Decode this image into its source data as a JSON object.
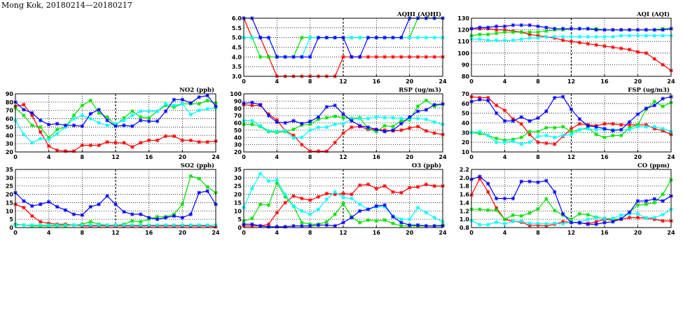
{
  "title": "Mong Kok, 20180214—20180217",
  "series_colors": {
    "red": "#ff0000",
    "green": "#00e000",
    "cyan": "#00ffff",
    "blue": "#0000ff"
  },
  "chart_data": [
    {
      "id": "aqhi",
      "type": "line",
      "title": "AQHI (AQHI)",
      "xlabel": "",
      "ylabel": "",
      "xlim": [
        0,
        24
      ],
      "xticks": [
        0,
        4,
        8,
        12,
        16,
        20,
        24
      ],
      "ylim": [
        3,
        6
      ],
      "yticks": [
        "3.0",
        "3.5",
        "4.0",
        "4.5",
        "5.0",
        "5.5",
        "6.0"
      ],
      "grid": true,
      "series": [
        {
          "name": "red",
          "values": [
            6,
            5,
            5,
            4,
            3,
            3,
            3,
            3,
            3,
            3,
            3,
            3,
            4,
            4,
            4,
            4,
            4,
            4,
            4,
            4,
            4,
            4,
            4,
            4,
            4
          ]
        },
        {
          "name": "green",
          "values": [
            5,
            5,
            4,
            4,
            4,
            4,
            4,
            5,
            5,
            5,
            5,
            5,
            5,
            5,
            5,
            5,
            5,
            5,
            5,
            5,
            5,
            6,
            6,
            6,
            6
          ]
        },
        {
          "name": "cyan",
          "values": [
            5,
            5,
            5,
            5,
            4,
            4,
            4,
            4,
            5,
            5,
            5,
            5,
            5,
            5,
            5,
            5,
            5,
            5,
            5,
            5,
            5,
            5,
            5,
            5,
            5
          ]
        },
        {
          "name": "blue",
          "values": [
            6,
            6,
            5,
            5,
            4,
            4,
            4,
            4,
            4,
            5,
            5,
            5,
            5,
            4,
            4,
            5,
            5,
            5,
            5,
            5,
            6,
            6,
            6,
            6,
            6
          ]
        }
      ]
    },
    {
      "id": "aqi",
      "type": "line",
      "title": "AQI (AQI)",
      "xlabel": "",
      "ylabel": "",
      "xlim": [
        0,
        24
      ],
      "xticks": [
        0,
        4,
        8,
        12,
        16,
        20,
        24
      ],
      "ylim": [
        80,
        130
      ],
      "yticks": [
        "80",
        "90",
        "100",
        "110",
        "120",
        "130"
      ],
      "grid": true,
      "series": [
        {
          "name": "red",
          "values": [
            121,
            121,
            121,
            120,
            120,
            119,
            118,
            116,
            115,
            114,
            113,
            111,
            110,
            109,
            108,
            107,
            106,
            105,
            104,
            103,
            101,
            100,
            95,
            90,
            85
          ]
        },
        {
          "name": "green",
          "values": [
            115,
            116,
            116,
            117,
            118,
            118,
            118,
            118,
            118,
            119,
            120,
            120,
            121,
            121,
            121,
            121,
            120,
            120,
            120,
            120,
            120,
            120,
            120,
            121,
            121
          ]
        },
        {
          "name": "cyan",
          "values": [
            112,
            112,
            111,
            111,
            111,
            111,
            112,
            113,
            113,
            114,
            114,
            114,
            114,
            114,
            114,
            114,
            114,
            114,
            115,
            115,
            115,
            115,
            115,
            115,
            115
          ]
        },
        {
          "name": "blue",
          "values": [
            121,
            122,
            122,
            123,
            123,
            124,
            124,
            124,
            123,
            122,
            121,
            121,
            121,
            121,
            121,
            120,
            120,
            120,
            120,
            120,
            120,
            120,
            120,
            120,
            121
          ]
        }
      ]
    },
    {
      "id": "no2",
      "type": "line",
      "title": "NO2 (ppb)",
      "xlabel": "",
      "ylabel": "",
      "xlim": [
        0,
        24
      ],
      "xticks": [
        0,
        4,
        8,
        12,
        16,
        20,
        24
      ],
      "ylim": [
        20,
        90
      ],
      "yticks": [
        "20",
        "30",
        "40",
        "50",
        "60",
        "70",
        "80",
        "90"
      ],
      "grid": true,
      "series": [
        {
          "name": "red",
          "values": [
            75,
            77,
            64,
            44,
            27,
            22,
            21,
            21,
            28,
            28,
            28,
            32,
            31,
            31,
            26,
            31,
            34,
            34,
            39,
            39,
            34,
            34,
            32,
            32,
            33
          ]
        },
        {
          "name": "green",
          "values": [
            73,
            64,
            52,
            50,
            37,
            47,
            50,
            64,
            76,
            82,
            67,
            62,
            52,
            61,
            69,
            62,
            61,
            69,
            76,
            74,
            78,
            78,
            78,
            82,
            79
          ]
        },
        {
          "name": "cyan",
          "values": [
            58,
            41,
            31,
            36,
            35,
            42,
            50,
            60,
            64,
            60,
            55,
            52,
            54,
            58,
            64,
            69,
            69,
            69,
            78,
            76,
            78,
            65,
            70,
            72,
            73
          ]
        },
        {
          "name": "blue",
          "values": [
            80,
            71,
            67,
            58,
            53,
            54,
            52,
            52,
            51,
            66,
            71,
            58,
            51,
            52,
            51,
            58,
            57,
            57,
            69,
            83,
            83,
            79,
            86,
            88,
            75
          ]
        }
      ]
    },
    {
      "id": "rsp",
      "type": "line",
      "title": "RSP (ug/m3)",
      "xlabel": "",
      "ylabel": "",
      "xlim": [
        0,
        24
      ],
      "xticks": [
        0,
        4,
        8,
        12,
        16,
        20,
        24
      ],
      "ylim": [
        20,
        100
      ],
      "yticks": [
        "20",
        "30",
        "40",
        "50",
        "60",
        "70",
        "80",
        "90",
        "100"
      ],
      "grid": true,
      "series": [
        {
          "name": "red",
          "values": [
            85,
            84,
            84,
            72,
            64,
            49,
            43,
            30,
            21,
            21,
            21,
            33,
            46,
            54,
            55,
            51,
            51,
            50,
            49,
            50,
            53,
            55,
            49,
            46,
            44
          ]
        },
        {
          "name": "green",
          "values": [
            58,
            58,
            55,
            48,
            47,
            48,
            51,
            57,
            58,
            65,
            67,
            69,
            67,
            66,
            67,
            52,
            48,
            56,
            55,
            63,
            64,
            83,
            91,
            83,
            86
          ]
        },
        {
          "name": "cyan",
          "values": [
            63,
            63,
            56,
            49,
            48,
            49,
            39,
            40,
            50,
            54,
            54,
            58,
            59,
            65,
            66,
            66,
            68,
            67,
            67,
            66,
            66,
            66,
            65,
            61,
            58
          ]
        },
        {
          "name": "blue",
          "values": [
            87,
            88,
            85,
            70,
            61,
            60,
            63,
            59,
            62,
            68,
            82,
            84,
            72,
            63,
            56,
            54,
            51,
            48,
            50,
            59,
            68,
            76,
            78,
            85,
            86
          ]
        }
      ]
    },
    {
      "id": "fsp",
      "type": "line",
      "title": "FSP (ug/m3)",
      "xlabel": "",
      "ylabel": "",
      "xlim": [
        0,
        24
      ],
      "xticks": [
        0,
        4,
        8,
        12,
        16,
        20,
        24
      ],
      "ylim": [
        10,
        70
      ],
      "yticks": [
        "10",
        "20",
        "30",
        "40",
        "50",
        "60",
        "70"
      ],
      "grid": true,
      "series": [
        {
          "name": "red",
          "values": [
            67,
            66,
            66,
            58,
            53,
            44,
            39,
            28,
            20,
            19,
            18,
            26,
            34,
            39,
            38,
            37,
            39,
            39,
            38,
            38,
            38,
            38,
            34,
            32,
            28
          ]
        },
        {
          "name": "green",
          "values": [
            30,
            29,
            27,
            24,
            22,
            23,
            25,
            31,
            31,
            35,
            35,
            36,
            31,
            33,
            35,
            28,
            25,
            27,
            27,
            35,
            38,
            54,
            62,
            57,
            61
          ]
        },
        {
          "name": "cyan",
          "values": [
            30,
            31,
            27,
            20,
            20,
            21,
            18,
            20,
            26,
            27,
            25,
            27,
            28,
            33,
            34,
            33,
            33,
            33,
            33,
            33,
            36,
            36,
            36,
            34,
            31
          ]
        },
        {
          "name": "blue",
          "values": [
            62,
            64,
            63,
            50,
            42,
            42,
            46,
            42,
            45,
            52,
            66,
            67,
            54,
            44,
            37,
            36,
            34,
            32,
            33,
            41,
            49,
            55,
            58,
            65,
            67
          ]
        }
      ]
    },
    {
      "id": "so2",
      "type": "line",
      "title": "SO2 (ppb)",
      "xlabel": "",
      "ylabel": "",
      "xlim": [
        0,
        24
      ],
      "xticks": [
        0,
        4,
        8,
        12,
        16,
        20,
        24
      ],
      "ylim": [
        0,
        35
      ],
      "yticks": [
        "0",
        "5",
        "10",
        "15",
        "20",
        "25",
        "30",
        "35"
      ],
      "grid": true,
      "series": [
        {
          "name": "red",
          "values": [
            14,
            12,
            7,
            3.5,
            2.5,
            2,
            2,
            1.5,
            1,
            1,
            1,
            1,
            1,
            1,
            1,
            1,
            1,
            1,
            1,
            1,
            1,
            1,
            1,
            1,
            0.5
          ]
        },
        {
          "name": "green",
          "values": [
            2,
            1.5,
            1,
            1,
            1,
            1,
            1,
            1.5,
            2,
            3.5,
            2,
            1.5,
            1.5,
            2,
            4,
            3.5,
            5,
            6.5,
            6.5,
            8,
            14,
            31,
            29.5,
            24.5,
            21
          ]
        },
        {
          "name": "cyan",
          "values": [
            1.5,
            1.5,
            1.5,
            1.5,
            1.5,
            1.5,
            1.5,
            1.5,
            1.5,
            1.5,
            1.5,
            1.5,
            1.5,
            1.5,
            1.5,
            1.5,
            1.5,
            1.5,
            1.5,
            1.5,
            1.5,
            1.5,
            1.5,
            1.5,
            1.5
          ]
        },
        {
          "name": "blue",
          "values": [
            21,
            16,
            13,
            14,
            15.5,
            12.5,
            10.5,
            8,
            7.5,
            12.5,
            14,
            19,
            14,
            9.5,
            8,
            8,
            6,
            5,
            6,
            7,
            6,
            8,
            21,
            22,
            14
          ]
        }
      ]
    },
    {
      "id": "o3",
      "type": "line",
      "title": "O3 (ppb)",
      "xlabel": "",
      "ylabel": "",
      "xlim": [
        0,
        24
      ],
      "xticks": [
        0,
        4,
        8,
        12,
        16,
        20,
        24
      ],
      "ylim": [
        0,
        35
      ],
      "yticks": [
        "0",
        "5",
        "10",
        "15",
        "20",
        "25",
        "30",
        "35"
      ],
      "grid": true,
      "series": [
        {
          "name": "red",
          "values": [
            1,
            1,
            1,
            2,
            9,
            15,
            19,
            17.5,
            16.5,
            18.5,
            20.5,
            20,
            20.5,
            20,
            25.5,
            26,
            23.5,
            25,
            21.5,
            21,
            24,
            24.5,
            26,
            25,
            25
          ]
        },
        {
          "name": "green",
          "values": [
            4,
            5.5,
            14,
            13.5,
            27,
            18.5,
            13,
            3,
            2,
            2,
            3.5,
            8,
            14.5,
            6.5,
            3,
            4.5,
            4,
            4.5,
            2.5,
            1,
            1,
            1,
            1,
            1,
            1.5
          ]
        },
        {
          "name": "cyan",
          "values": [
            12,
            23.5,
            32.5,
            28,
            28.5,
            20,
            13,
            10,
            8,
            11,
            17,
            21.5,
            18,
            17.5,
            14,
            11,
            12.5,
            12.5,
            7,
            5,
            5,
            12,
            9,
            6,
            3.5
          ]
        },
        {
          "name": "blue",
          "values": [
            2,
            2,
            1,
            0.5,
            0.5,
            0.5,
            1,
            1,
            1,
            1.5,
            1.5,
            1,
            3,
            6,
            10,
            11,
            13,
            13.5,
            6.5,
            3,
            1.5,
            1.5,
            1,
            1,
            1
          ]
        }
      ]
    },
    {
      "id": "co",
      "type": "line",
      "title": "CO (ppm)",
      "xlabel": "",
      "ylabel": "",
      "xlim": [
        0,
        24
      ],
      "xticks": [
        0,
        4,
        8,
        12,
        16,
        20,
        24
      ],
      "ylim": [
        0.8,
        2.2
      ],
      "yticks": [
        "0.8",
        "1.0",
        "1.2",
        "1.4",
        "1.6",
        "1.8",
        "2.0",
        "2.2"
      ],
      "grid": true,
      "series": [
        {
          "name": "red",
          "values": [
            1.58,
            1.98,
            1.66,
            1.27,
            1.0,
            0.95,
            0.93,
            0.85,
            0.86,
            0.84,
            0.88,
            0.94,
            0.93,
            0.91,
            0.9,
            0.94,
            1.0,
            0.98,
            1.0,
            1.04,
            1.04,
            1.03,
            1.0,
            0.96,
            0.96
          ]
        },
        {
          "name": "green",
          "values": [
            1.24,
            1.24,
            1.22,
            1.22,
            1.0,
            1.1,
            1.08,
            1.15,
            1.25,
            1.49,
            1.21,
            1.1,
            1.0,
            1.13,
            1.11,
            1.05,
            1.02,
            1.0,
            1.01,
            1.17,
            1.34,
            1.36,
            1.4,
            1.6,
            1.95
          ]
        },
        {
          "name": "cyan",
          "values": [
            0.97,
            0.87,
            0.87,
            0.93,
            0.89,
            0.95,
            0.95,
            0.9,
            0.9,
            0.89,
            0.9,
            0.89,
            0.93,
            0.93,
            1.0,
            1.04,
            1.02,
            1.02,
            1.1,
            1.13,
            1.13,
            1.03,
            1.04,
            1.11,
            1.24
          ]
        },
        {
          "name": "blue",
          "values": [
            1.96,
            2.03,
            1.86,
            1.5,
            1.5,
            1.5,
            1.91,
            1.91,
            1.89,
            1.93,
            1.66,
            1.13,
            0.92,
            0.92,
            0.88,
            0.88,
            0.92,
            0.94,
            1.01,
            1.17,
            1.44,
            1.44,
            1.49,
            1.44,
            1.56
          ]
        }
      ]
    }
  ]
}
